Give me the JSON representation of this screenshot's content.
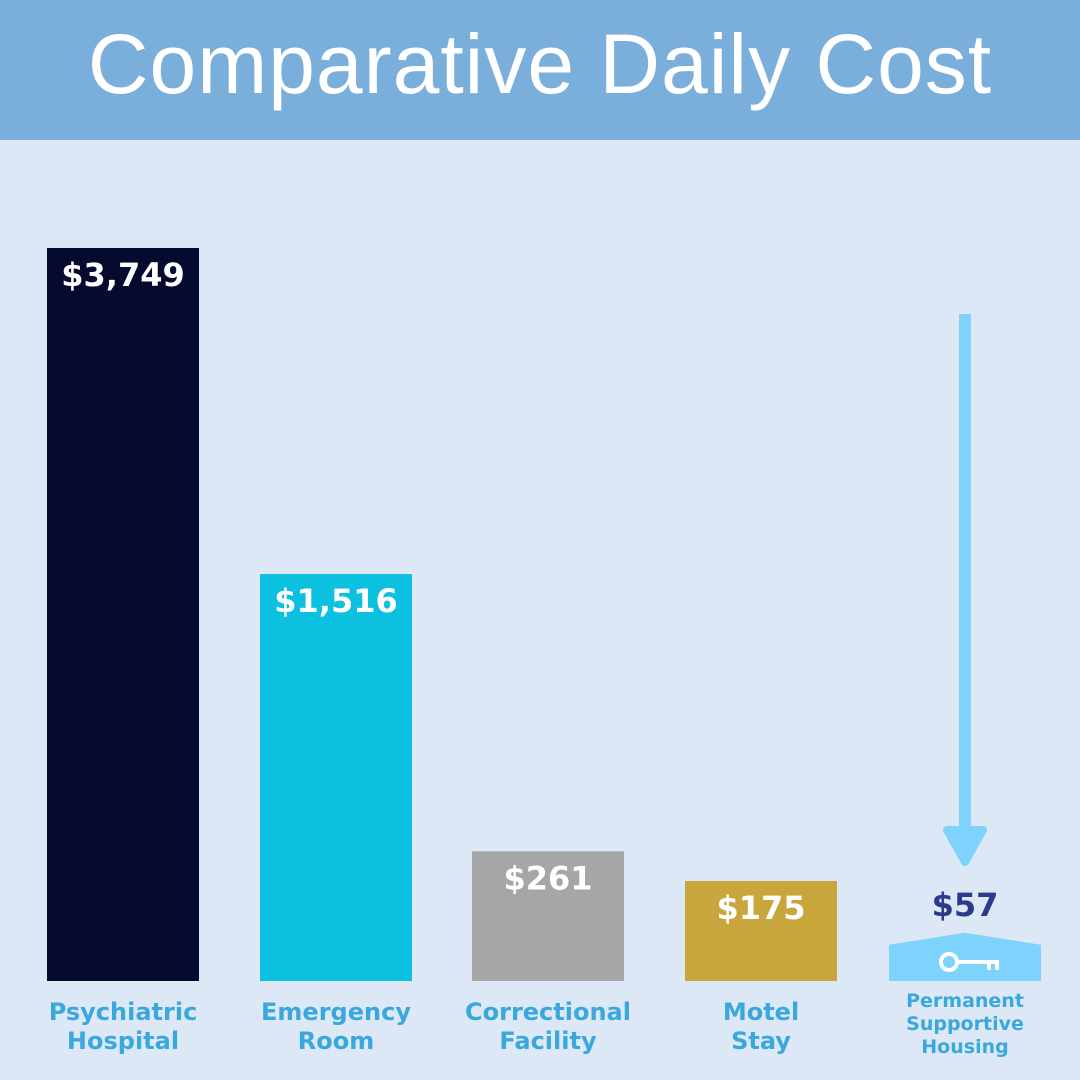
{
  "chart_data": {
    "type": "bar",
    "title": "Comparative Daily Cost",
    "categories": [
      "Psychiatric Hospital",
      "Emergency Room",
      "Correctional Facility",
      "Motel Stay",
      "Permanent Supportive Housing"
    ],
    "values": [
      3749,
      1516,
      261,
      175,
      57
    ],
    "value_labels": [
      "$3,749",
      "$1,516",
      "$261",
      "$175",
      "$57"
    ],
    "colors": [
      "#050a2e",
      "#0cc0e0",
      "#a6a6a6",
      "#c9a63c",
      "#7dd3fb"
    ]
  }
}
